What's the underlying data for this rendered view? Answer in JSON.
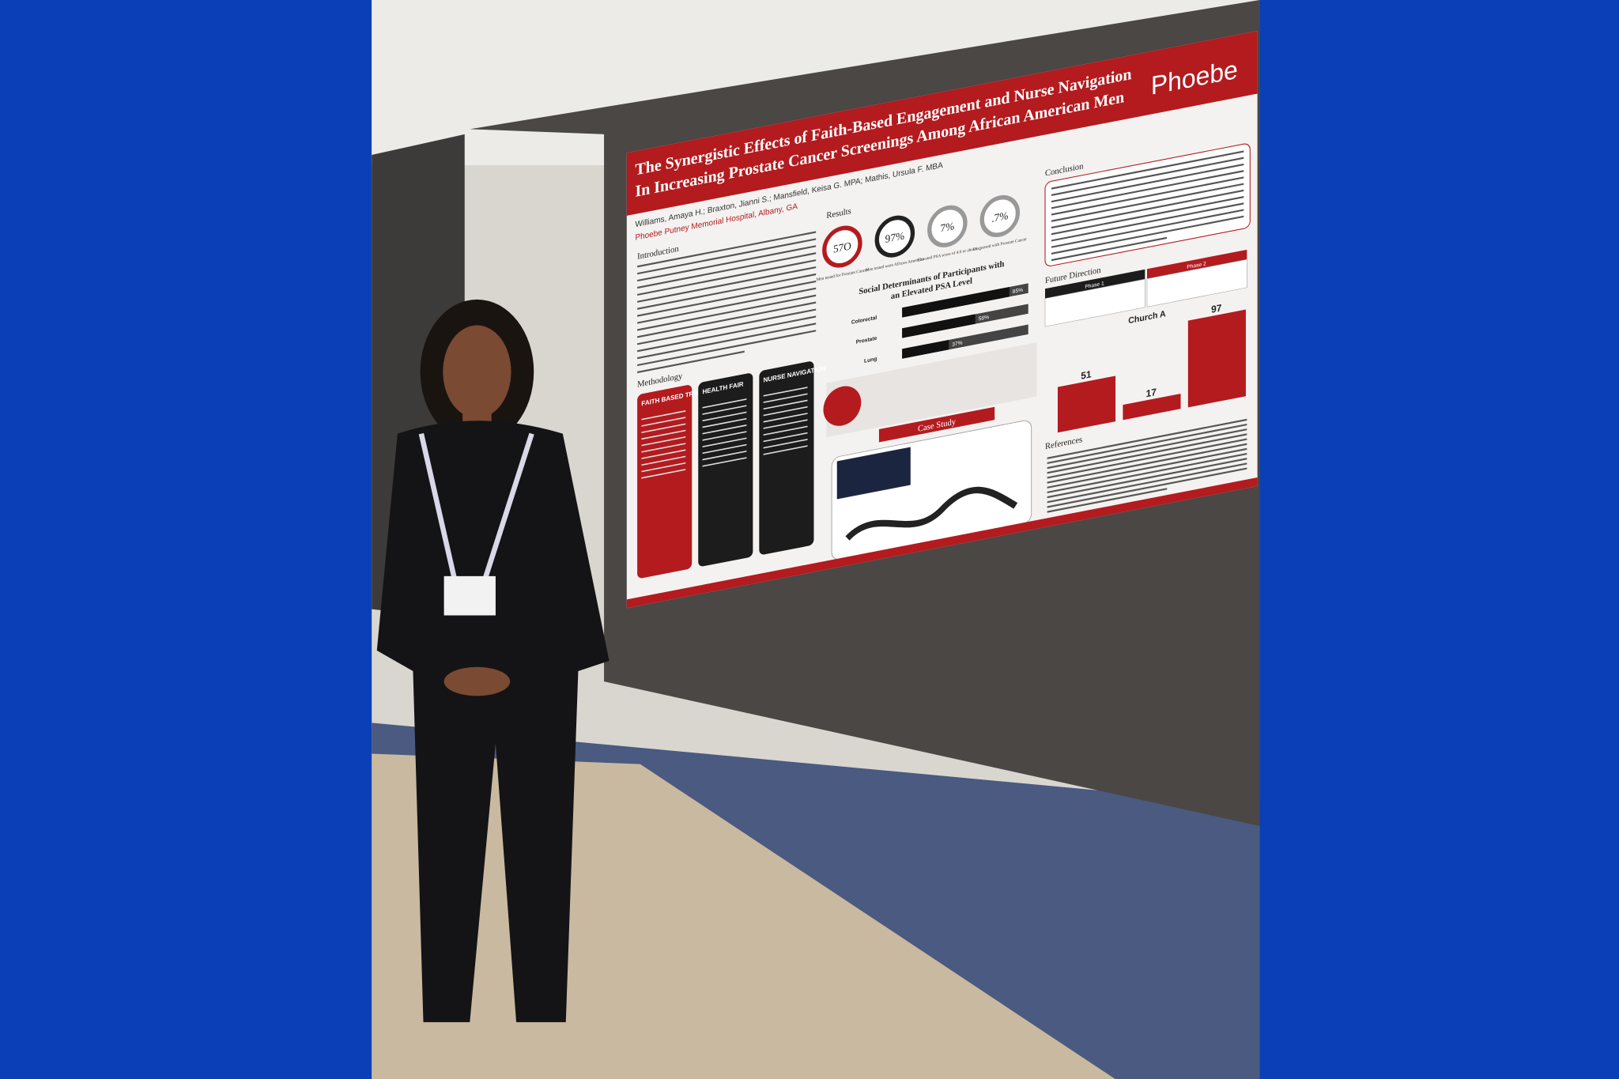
{
  "poster": {
    "title_line1": "The Synergistic Effects of Faith-Based Engagement and Nurse Navigation",
    "title_line2": "In Increasing Prostate Cancer Screenings Among African American Men",
    "logo": "Phoebe",
    "authors": "Williams, Amaya H.; Braxton, Jianni S.; Mansfield, Keisa G. MPA; Mathis, Ursula F. MBA",
    "affiliation": "Phoebe Putney Memorial Hospital, Albany, GA",
    "sections": {
      "introduction": "Introduction",
      "methodology": "Methodology",
      "results": "Results",
      "conclusion": "Conclusion",
      "future_direction": "Future Direction",
      "case_study": "Case Study",
      "references": "References"
    },
    "methods": [
      "FAITH BASED TRAINING",
      "HEALTH FAIR",
      "NURSE NAVIGATION"
    ],
    "results": [
      {
        "value": "57O",
        "label": "Men tested for Prostate Cancer"
      },
      {
        "value": "97%",
        "label": "Men tested were African American"
      },
      {
        "value": "7%",
        "label": "Elevated PSA score of 4.0 or above"
      },
      {
        "value": ".7%",
        "label": "Diagnosed with Prostate Cancer"
      }
    ],
    "determinants": {
      "title_line1": "Social Determinants of Participants with",
      "title_line2": "an Elevated PSA Level",
      "categories": [
        "Colorectal",
        "Prostate",
        "Lung"
      ],
      "values": [
        85,
        58,
        37
      ],
      "value_labels": [
        "85%",
        "58%",
        "37%"
      ]
    },
    "phases": [
      "Phase 1",
      "Phase 2"
    ],
    "church_chart": {
      "title": "Church A",
      "values": [
        51,
        17,
        97
      ]
    }
  }
}
